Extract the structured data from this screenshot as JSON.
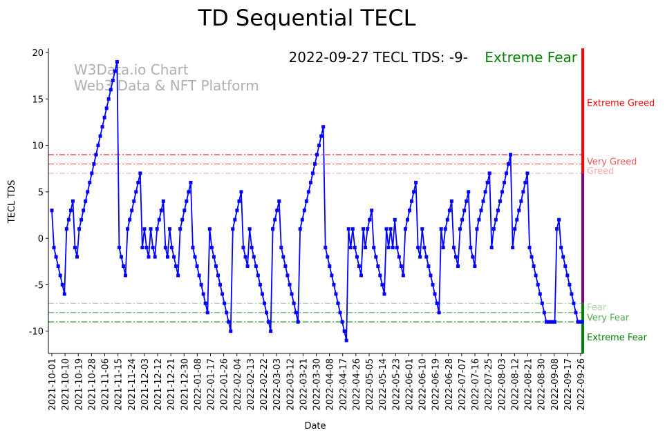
{
  "chart_data": {
    "type": "line",
    "title": "TD Sequential TECL",
    "xlabel": "Date",
    "ylabel": "TECL TDS",
    "ylim": [
      -12.4,
      20.45
    ],
    "yticks": [
      -10,
      -5,
      0,
      5,
      10,
      15,
      20
    ],
    "x_start": "2021-10-01",
    "x_end": "2022-09-27",
    "xticks": [
      "2021-10-01",
      "2021-10-10",
      "2021-10-19",
      "2021-10-28",
      "2021-11-06",
      "2021-11-15",
      "2021-11-24",
      "2021-12-03",
      "2021-12-12",
      "2021-12-21",
      "2021-12-30",
      "2022-01-08",
      "2022-01-17",
      "2022-01-26",
      "2022-02-04",
      "2022-02-13",
      "2022-02-22",
      "2022-03-03",
      "2022-03-12",
      "2022-03-21",
      "2022-03-30",
      "2022-04-08",
      "2022-04-17",
      "2022-04-26",
      "2022-05-05",
      "2022-05-14",
      "2022-05-23",
      "2022-06-01",
      "2022-06-10",
      "2022-06-19",
      "2022-06-28",
      "2022-07-07",
      "2022-07-16",
      "2022-07-25",
      "2022-08-03",
      "2022-08-12",
      "2022-08-21",
      "2022-08-30",
      "2022-09-08",
      "2022-09-17",
      "2022-09-26"
    ],
    "series": [
      {
        "name": "TECL TDS",
        "color": "#0000ff",
        "values": [
          3,
          -1,
          -2,
          -3,
          -4,
          -5,
          -6,
          1,
          2,
          3,
          4,
          -1,
          -2,
          1,
          2,
          3,
          4,
          5,
          6,
          7,
          8,
          9,
          10,
          11,
          12,
          13,
          14,
          15,
          16,
          17,
          18,
          19,
          -1,
          -2,
          -3,
          -4,
          1,
          2,
          3,
          4,
          5,
          6,
          7,
          -1,
          1,
          -1,
          -2,
          1,
          -1,
          -2,
          1,
          2,
          3,
          4,
          -1,
          -2,
          1,
          -1,
          -2,
          -3,
          -4,
          1,
          2,
          3,
          4,
          5,
          6,
          -1,
          -2,
          -3,
          -4,
          -5,
          -6,
          -7,
          -8,
          1,
          -1,
          -2,
          -3,
          -4,
          -5,
          -6,
          -7,
          -8,
          -9,
          -10,
          1,
          2,
          3,
          4,
          5,
          -1,
          -2,
          -3,
          1,
          -1,
          -2,
          -3,
          -4,
          -5,
          -6,
          -7,
          -8,
          -9,
          -10,
          1,
          2,
          3,
          4,
          -1,
          -2,
          -3,
          -4,
          -5,
          -6,
          -7,
          -8,
          -9,
          1,
          2,
          3,
          4,
          5,
          6,
          7,
          8,
          9,
          10,
          11,
          12,
          -1,
          -2,
          -3,
          -4,
          -5,
          -6,
          -7,
          -8,
          -9,
          -10,
          -11,
          1,
          -1,
          1,
          -1,
          -2,
          -3,
          -4,
          1,
          -1,
          1,
          2,
          3,
          -1,
          -2,
          -3,
          -4,
          -5,
          -6,
          1,
          -1,
          1,
          -1,
          2,
          -1,
          -2,
          -3,
          -4,
          1,
          2,
          3,
          4,
          5,
          6,
          -1,
          -2,
          1,
          -1,
          -2,
          -3,
          -4,
          -5,
          -6,
          -7,
          -8,
          1,
          -1,
          1,
          2,
          3,
          4,
          -1,
          -2,
          -3,
          1,
          2,
          3,
          4,
          5,
          -1,
          -2,
          -3,
          1,
          2,
          3,
          4,
          5,
          6,
          7,
          -1,
          1,
          2,
          3,
          4,
          5,
          6,
          7,
          8,
          9,
          -1,
          1,
          2,
          3,
          4,
          5,
          6,
          7,
          -1,
          -2,
          -3,
          -4,
          -5,
          -6,
          -7,
          -8,
          -9,
          -9,
          -9,
          -9,
          -9,
          1,
          2,
          -1,
          -2,
          -3,
          -4,
          -5,
          -6,
          -7,
          -8,
          -9,
          -9,
          -9
        ]
      }
    ],
    "reference_lines": [
      {
        "value": 9,
        "color": "#ff0000"
      },
      {
        "value": 8,
        "color": "#ff5a5a"
      },
      {
        "value": 7,
        "color": "#ffb0b0"
      },
      {
        "value": -7,
        "color": "#a8d8a8"
      },
      {
        "value": -8,
        "color": "#55aa55"
      },
      {
        "value": -9,
        "color": "#008000"
      }
    ],
    "zones": [
      {
        "label": "Extreme Greed",
        "label_value": 14.6,
        "color": "#ff0000"
      },
      {
        "label": "Very Greed",
        "label_value": 8.3,
        "color": "#ff5555"
      },
      {
        "label": "Greed",
        "label_value": 7.3,
        "color": "#ffaaaa"
      },
      {
        "label": "Fear",
        "label_value": -7.4,
        "color": "#a8d8a8"
      },
      {
        "label": "Very Fear",
        "label_value": -8.5,
        "color": "#4caf50"
      },
      {
        "label": "Extreme Fear",
        "label_value": -10.6,
        "color": "#008000"
      }
    ],
    "side_bar": [
      {
        "from": 7,
        "to": 20.45,
        "color": "#ff0000"
      },
      {
        "from": -7,
        "to": 7,
        "color": "#800080"
      },
      {
        "from": -12.4,
        "to": -7,
        "color": "#008000"
      }
    ],
    "annotation": {
      "text": "2022-09-27 TECL TDS: -9-",
      "status": "Extreme Fear",
      "status_color": "#008000"
    },
    "watermark": {
      "line1": "W3Data.io Chart",
      "line2": "Web3 Data & NFT Platform"
    },
    "grid": false,
    "legend": "none"
  }
}
